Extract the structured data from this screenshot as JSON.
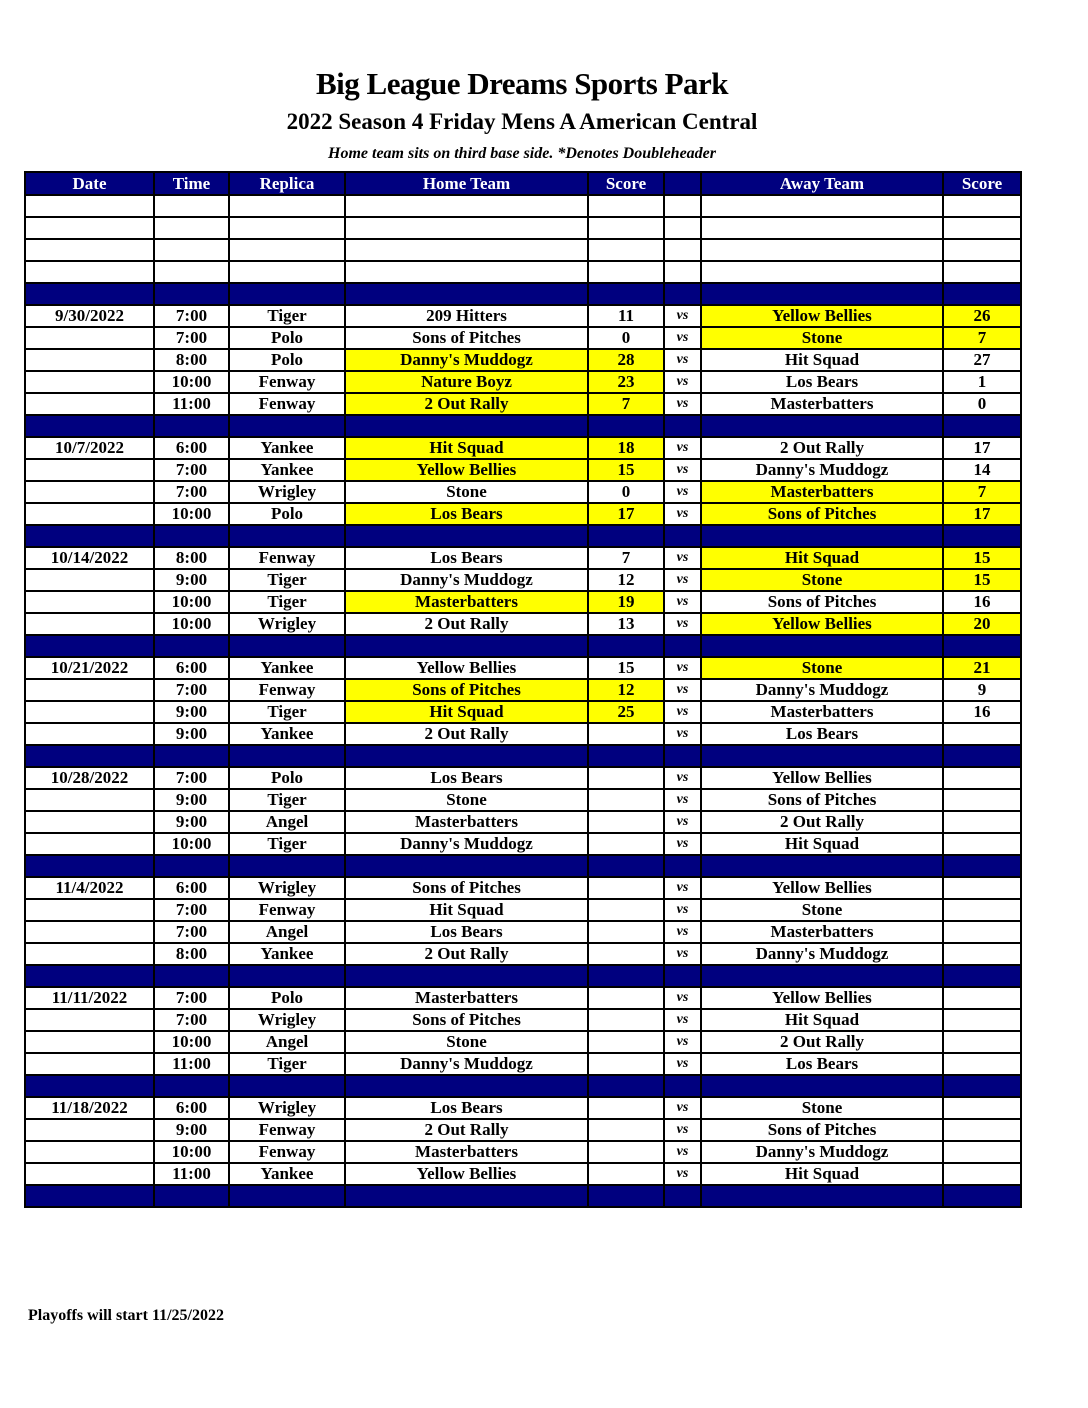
{
  "title": "Big League Dreams Sports Park",
  "subtitle": "2022 Season 4 Friday Mens A American Central",
  "note": "Home team sits on third base side.  *Denotes Doubleheader",
  "headers": [
    "Date",
    "Time",
    "Replica",
    "Home Team",
    "Score",
    "",
    "Away Team",
    "Score"
  ],
  "vs_label": "vs",
  "highlight_color": "#ffff00",
  "header_color": "#00007f",
  "footer": "Playoffs will start 11/25/2022",
  "weeks": [
    {
      "date": "9/30/2022",
      "games": [
        {
          "time": "7:00",
          "replica": "Tiger",
          "home": "209 Hitters",
          "home_score": "11",
          "away": "Yellow Bellies",
          "away_score": "26",
          "win": "away"
        },
        {
          "time": "7:00",
          "replica": "Polo",
          "home": "Sons of Pitches",
          "home_score": "0",
          "away": "Stone",
          "away_score": "7",
          "win": "away"
        },
        {
          "time": "8:00",
          "replica": "Polo",
          "home": "Danny's Muddogz",
          "home_score": "28",
          "away": "Hit Squad",
          "away_score": "27",
          "win": "home"
        },
        {
          "time": "10:00",
          "replica": "Fenway",
          "home": "Nature Boyz",
          "home_score": "23",
          "away": "Los Bears",
          "away_score": "1",
          "win": "home"
        },
        {
          "time": "11:00",
          "replica": "Fenway",
          "home": "2 Out Rally",
          "home_score": "7",
          "away": "Masterbatters",
          "away_score": "0",
          "win": "home"
        }
      ]
    },
    {
      "date": "10/7/2022",
      "games": [
        {
          "time": "6:00",
          "replica": "Yankee",
          "home": "Hit Squad",
          "home_score": "18",
          "away": "2 Out Rally",
          "away_score": "17",
          "win": "home"
        },
        {
          "time": "7:00",
          "replica": "Yankee",
          "home": "Yellow Bellies",
          "home_score": "15",
          "away": "Danny's Muddogz",
          "away_score": "14",
          "win": "home"
        },
        {
          "time": "7:00",
          "replica": "Wrigley",
          "home": "Stone",
          "home_score": "0",
          "away": "Masterbatters",
          "away_score": "7",
          "win": "away"
        },
        {
          "time": "10:00",
          "replica": "Polo",
          "home": "Los Bears",
          "home_score": "17",
          "away": "Sons of Pitches",
          "away_score": "17",
          "win": "both"
        }
      ]
    },
    {
      "date": "10/14/2022",
      "games": [
        {
          "time": "8:00",
          "replica": "Fenway",
          "home": "Los Bears",
          "home_score": "7",
          "away": "Hit Squad",
          "away_score": "15",
          "win": "away"
        },
        {
          "time": "9:00",
          "replica": "Tiger",
          "home": "Danny's Muddogz",
          "home_score": "12",
          "away": "Stone",
          "away_score": "15",
          "win": "away"
        },
        {
          "time": "10:00",
          "replica": "Tiger",
          "home": "Masterbatters",
          "home_score": "19",
          "away": "Sons of Pitches",
          "away_score": "16",
          "win": "home"
        },
        {
          "time": "10:00",
          "replica": "Wrigley",
          "home": "2 Out Rally",
          "home_score": "13",
          "away": "Yellow Bellies",
          "away_score": "20",
          "win": "away"
        }
      ]
    },
    {
      "date": "10/21/2022",
      "games": [
        {
          "time": "6:00",
          "replica": "Yankee",
          "home": "Yellow Bellies",
          "home_score": "15",
          "away": "Stone",
          "away_score": "21",
          "win": "away"
        },
        {
          "time": "7:00",
          "replica": "Fenway",
          "home": "Sons of Pitches",
          "home_score": "12",
          "away": "Danny's Muddogz",
          "away_score": "9",
          "win": "home"
        },
        {
          "time": "9:00",
          "replica": "Tiger",
          "home": "Hit Squad",
          "home_score": "25",
          "away": "Masterbatters",
          "away_score": "16",
          "win": "home"
        },
        {
          "time": "9:00",
          "replica": "Yankee",
          "home": "2 Out Rally",
          "home_score": "",
          "away": "Los Bears",
          "away_score": "",
          "win": ""
        }
      ]
    },
    {
      "date": "10/28/2022",
      "games": [
        {
          "time": "7:00",
          "replica": "Polo",
          "home": "Los Bears",
          "home_score": "",
          "away": "Yellow Bellies",
          "away_score": "",
          "win": ""
        },
        {
          "time": "9:00",
          "replica": "Tiger",
          "home": "Stone",
          "home_score": "",
          "away": "Sons of Pitches",
          "away_score": "",
          "win": ""
        },
        {
          "time": "9:00",
          "replica": "Angel",
          "home": "Masterbatters",
          "home_score": "",
          "away": "2 Out Rally",
          "away_score": "",
          "win": ""
        },
        {
          "time": "10:00",
          "replica": "Tiger",
          "home": "Danny's Muddogz",
          "home_score": "",
          "away": "Hit Squad",
          "away_score": "",
          "win": ""
        }
      ]
    },
    {
      "date": "11/4/2022",
      "games": [
        {
          "time": "6:00",
          "replica": "Wrigley",
          "home": "Sons of Pitches",
          "home_score": "",
          "away": "Yellow Bellies",
          "away_score": "",
          "win": ""
        },
        {
          "time": "7:00",
          "replica": "Fenway",
          "home": "Hit Squad",
          "home_score": "",
          "away": "Stone",
          "away_score": "",
          "win": ""
        },
        {
          "time": "7:00",
          "replica": "Angel",
          "home": "Los Bears",
          "home_score": "",
          "away": "Masterbatters",
          "away_score": "",
          "win": ""
        },
        {
          "time": "8:00",
          "replica": "Yankee",
          "home": "2 Out Rally",
          "home_score": "",
          "away": "Danny's Muddogz",
          "away_score": "",
          "win": ""
        }
      ]
    },
    {
      "date": "11/11/2022",
      "games": [
        {
          "time": "7:00",
          "replica": "Polo",
          "home": "Masterbatters",
          "home_score": "",
          "away": "Yellow Bellies",
          "away_score": "",
          "win": ""
        },
        {
          "time": "7:00",
          "replica": "Wrigley",
          "home": "Sons of Pitches",
          "home_score": "",
          "away": "Hit Squad",
          "away_score": "",
          "win": ""
        },
        {
          "time": "10:00",
          "replica": "Angel",
          "home": "Stone",
          "home_score": "",
          "away": "2 Out Rally",
          "away_score": "",
          "win": ""
        },
        {
          "time": "11:00",
          "replica": "Tiger",
          "home": "Danny's Muddogz",
          "home_score": "",
          "away": "Los Bears",
          "away_score": "",
          "win": ""
        }
      ]
    },
    {
      "date": "11/18/2022",
      "games": [
        {
          "time": "6:00",
          "replica": "Wrigley",
          "home": "Los Bears",
          "home_score": "",
          "away": "Stone",
          "away_score": "",
          "win": ""
        },
        {
          "time": "9:00",
          "replica": "Fenway",
          "home": "2 Out Rally",
          "home_score": "",
          "away": "Sons of Pitches",
          "away_score": "",
          "win": ""
        },
        {
          "time": "10:00",
          "replica": "Fenway",
          "home": "Masterbatters",
          "home_score": "",
          "away": "Danny's Muddogz",
          "away_score": "",
          "win": ""
        },
        {
          "time": "11:00",
          "replica": "Yankee",
          "home": "Yellow Bellies",
          "home_score": "",
          "away": "Hit Squad",
          "away_score": "",
          "win": ""
        }
      ]
    }
  ]
}
